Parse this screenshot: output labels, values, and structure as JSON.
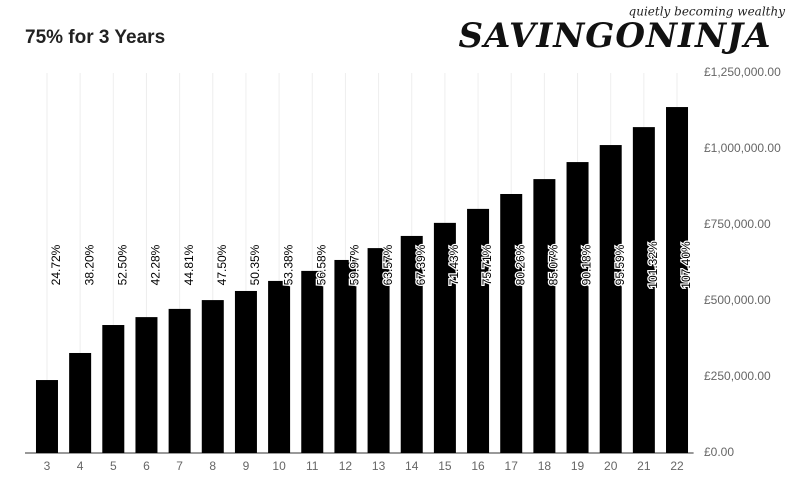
{
  "chart_data": {
    "type": "bar",
    "title": "75% for 3 Years",
    "logo": "SAVINGONINJA",
    "tagline": "quietly becoming wealthy",
    "categories": [
      "3",
      "4",
      "5",
      "6",
      "7",
      "8",
      "9",
      "10",
      "11",
      "12",
      "13",
      "14",
      "15",
      "16",
      "17",
      "18",
      "19",
      "20",
      "21",
      "22"
    ],
    "values": [
      240000,
      329000,
      421000,
      447000,
      474000,
      503000,
      533000,
      566000,
      599000,
      635000,
      674000,
      714000,
      757000,
      803000,
      852000,
      901000,
      957000,
      1013000,
      1072000,
      1138000
    ],
    "bar_labels": [
      "24.72%",
      "38.20%",
      "52.50%",
      "42.28%",
      "44.81%",
      "47.50%",
      "50.35%",
      "53.38%",
      "56.58%",
      "59.97%",
      "63.57%",
      "67.39%",
      "71.43%",
      "75.71%",
      "80.26%",
      "85.07%",
      "90.18%",
      "95.59%",
      "101.32%",
      "107.40%"
    ],
    "color": "#000000",
    "ylim": [
      0,
      1250000
    ],
    "yticks": [
      {
        "value": 0,
        "label": "£0.00"
      },
      {
        "value": 250000,
        "label": "£250,000.00"
      },
      {
        "value": 500000,
        "label": "£500,000.00"
      },
      {
        "value": 750000,
        "label": "£750,000.00"
      },
      {
        "value": 1000000,
        "label": "£1,000,000.00"
      },
      {
        "value": 1250000,
        "label": "£1,250,000.00"
      }
    ],
    "grid": true
  }
}
